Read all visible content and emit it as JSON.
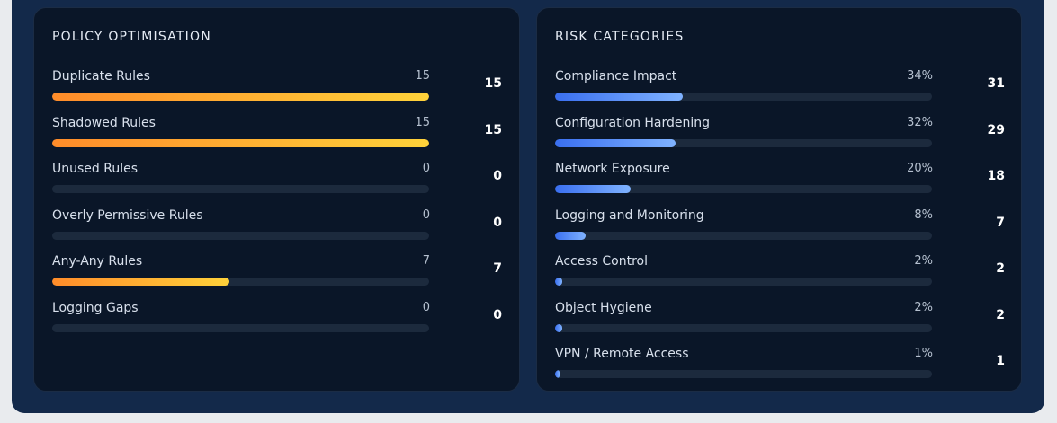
{
  "policy": {
    "title": "POLICY OPTIMISATION",
    "rows": [
      {
        "label": "Duplicate Rules",
        "value": "15",
        "count": "15",
        "fraction": 1.0
      },
      {
        "label": "Shadowed Rules",
        "value": "15",
        "count": "15",
        "fraction": 1.0
      },
      {
        "label": "Unused Rules",
        "value": "0",
        "count": "0",
        "fraction": 0
      },
      {
        "label": "Overly Permissive Rules",
        "value": "0",
        "count": "0",
        "fraction": 0
      },
      {
        "label": "Any-Any Rules",
        "value": "7",
        "count": "7",
        "fraction": 0.47
      },
      {
        "label": "Logging Gaps",
        "value": "0",
        "count": "0",
        "fraction": 0
      }
    ],
    "bar_color": "#ffb02e"
  },
  "risk": {
    "title": "RISK CATEGORIES",
    "rows": [
      {
        "label": "Compliance Impact",
        "value": "34%",
        "count": "31",
        "fraction": 0.34
      },
      {
        "label": "Configuration Hardening",
        "value": "32%",
        "count": "29",
        "fraction": 0.32
      },
      {
        "label": "Network Exposure",
        "value": "20%",
        "count": "18",
        "fraction": 0.2
      },
      {
        "label": "Logging and Monitoring",
        "value": "8%",
        "count": "7",
        "fraction": 0.08
      },
      {
        "label": "Access Control",
        "value": "2%",
        "count": "2",
        "fraction": 0.02
      },
      {
        "label": "Object Hygiene",
        "value": "2%",
        "count": "2",
        "fraction": 0.02
      },
      {
        "label": "VPN / Remote Access",
        "value": "1%",
        "count": "1",
        "fraction": 0.01
      }
    ],
    "bar_color": "#4f86f7"
  }
}
